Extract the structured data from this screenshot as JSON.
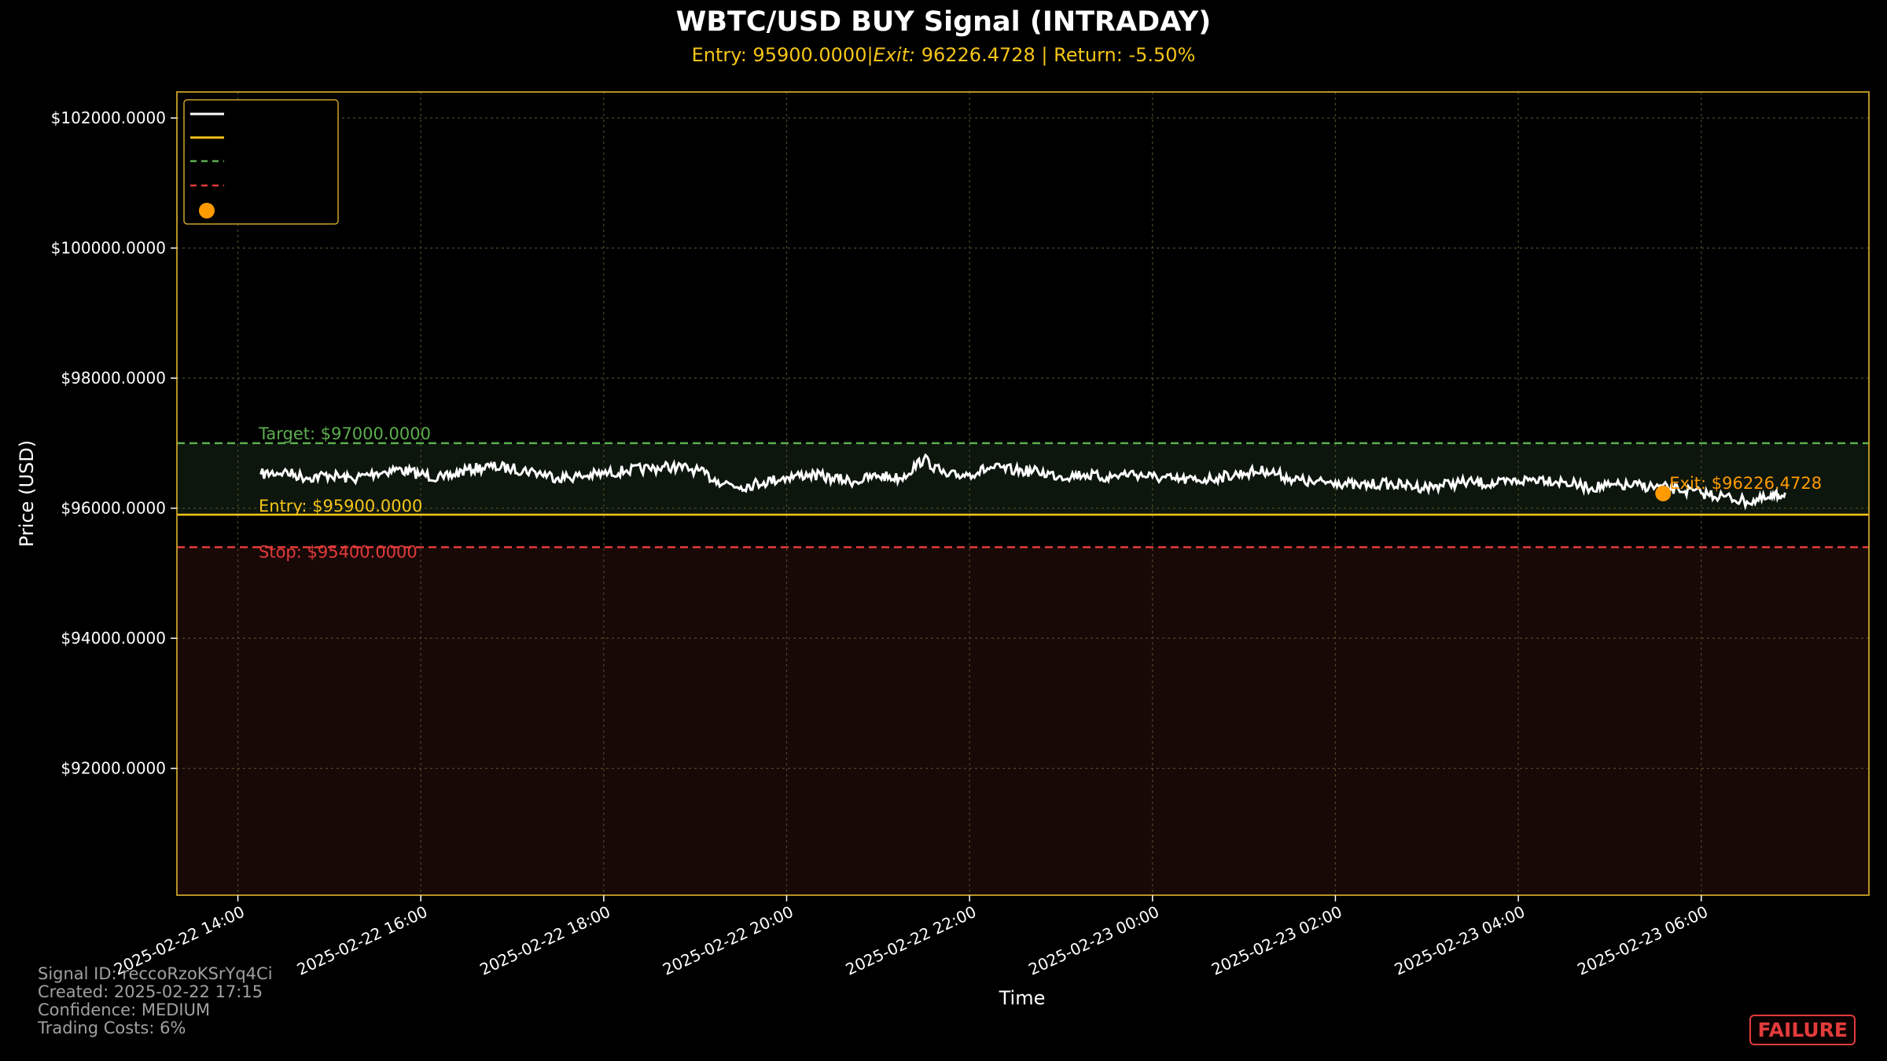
{
  "header": {
    "title": "WBTC/USD BUY Signal (INTRADAY)",
    "subtitle_entry": "Entry: 95900.0000|",
    "subtitle_exit_label": "Exit:",
    "subtitle_exit_value": " 96226.4728",
    "subtitle_return": " | Return: -5.50%"
  },
  "chart_data": {
    "type": "line",
    "title": "WBTC/USD BUY Signal (INTRADAY)",
    "xlabel": "Time",
    "ylabel": "Price (USD)",
    "ylim": [
      90050,
      102400
    ],
    "xlim": [
      "2025-02-22 13:20",
      "2025-02-23 07:50"
    ],
    "y_ticks": [
      92000,
      94000,
      96000,
      98000,
      100000,
      102000
    ],
    "y_tick_labels": [
      "$92000.0000",
      "$94000.0000",
      "$96000.0000",
      "$98000.0000",
      "$100000.0000",
      "$102000.0000"
    ],
    "x_ticks": [
      "2025-02-22 14:00",
      "2025-02-22 16:00",
      "2025-02-22 18:00",
      "2025-02-22 20:00",
      "2025-02-22 22:00",
      "2025-02-23 00:00",
      "2025-02-23 02:00",
      "2025-02-23 04:00",
      "2025-02-23 06:00"
    ],
    "grid": true,
    "legend": "top-left",
    "levels": {
      "entry": 95900,
      "target": 97000,
      "stop": 95400,
      "exit": 96226.4728
    },
    "level_labels": {
      "entry": "Entry: $95900.0000",
      "target": "Target: $97000.0000",
      "stop": "Stop: $95400.0000",
      "exit": "Exit: $96226.4728"
    },
    "exit_time": "2025-02-23 05:35",
    "series": [
      {
        "x": [
          "2025-02-22 14:15",
          "2025-02-22 14:30",
          "2025-02-22 14:45",
          "2025-02-22 15:00",
          "2025-02-22 15:15",
          "2025-02-22 15:30",
          "2025-02-22 15:45",
          "2025-02-22 16:00",
          "2025-02-22 16:15",
          "2025-02-22 16:30",
          "2025-02-22 16:45",
          "2025-02-22 17:00",
          "2025-02-22 17:15",
          "2025-02-22 17:30",
          "2025-02-22 17:45",
          "2025-02-22 18:00",
          "2025-02-22 18:15",
          "2025-02-22 18:30",
          "2025-02-22 18:45",
          "2025-02-22 19:00",
          "2025-02-22 19:15",
          "2025-02-22 19:30",
          "2025-02-22 19:45",
          "2025-02-22 20:00",
          "2025-02-22 20:15",
          "2025-02-22 20:30",
          "2025-02-22 20:45",
          "2025-02-22 21:00",
          "2025-02-22 21:15",
          "2025-02-22 21:30",
          "2025-02-22 21:45",
          "2025-02-22 22:00",
          "2025-02-22 22:15",
          "2025-02-22 22:30",
          "2025-02-22 22:45",
          "2025-02-22 23:00",
          "2025-02-22 23:15",
          "2025-02-22 23:30",
          "2025-02-22 23:45",
          "2025-02-23 00:00",
          "2025-02-23 00:15",
          "2025-02-23 00:30",
          "2025-02-23 00:45",
          "2025-02-23 01:00",
          "2025-02-23 01:15",
          "2025-02-23 01:30",
          "2025-02-23 01:45",
          "2025-02-23 02:00",
          "2025-02-23 02:15",
          "2025-02-23 02:30",
          "2025-02-23 02:45",
          "2025-02-23 03:00",
          "2025-02-23 03:15",
          "2025-02-23 03:30",
          "2025-02-23 03:45",
          "2025-02-23 04:00",
          "2025-02-23 04:15",
          "2025-02-23 04:30",
          "2025-02-23 04:45",
          "2025-02-23 05:00",
          "2025-02-23 05:15",
          "2025-02-23 05:30",
          "2025-02-23 05:45",
          "2025-02-23 06:00",
          "2025-02-23 06:15",
          "2025-02-23 06:30",
          "2025-02-23 06:45",
          "2025-02-23 06:55"
        ],
        "y": [
          96520,
          96560,
          96470,
          96510,
          96450,
          96540,
          96600,
          96520,
          96460,
          96590,
          96640,
          96610,
          96560,
          96470,
          96490,
          96530,
          96580,
          96610,
          96640,
          96590,
          96420,
          96330,
          96400,
          96480,
          96520,
          96460,
          96410,
          96500,
          96460,
          96760,
          96490,
          96530,
          96620,
          96580,
          96560,
          96490,
          96520,
          96470,
          96540,
          96480,
          96440,
          96430,
          96480,
          96540,
          96580,
          96460,
          96390,
          96410,
          96340,
          96380,
          96350,
          96320,
          96380,
          96400,
          96370,
          96420,
          96460,
          96400,
          96320,
          96340,
          96350,
          96330,
          96290,
          96230,
          96180,
          96100,
          96150,
          96240
        ]
      }
    ]
  },
  "footer": {
    "signal_id": "Signal ID: reccoRzoKSrYq4Ci",
    "created": "Created: 2025-02-22 17:15",
    "confidence": "Confidence: MEDIUM",
    "costs": "Trading Costs: 6%"
  },
  "badge": "FAILURE",
  "colors": {
    "background": "#000000",
    "axes_border": "#c9a227",
    "grid": "#4a4a2a",
    "price": "#ffffff",
    "entry": "#f5c518",
    "target": "#5cae4f",
    "stop": "#e03a3a",
    "exit": "#ff9a00",
    "target_zone": "#0c160d",
    "stop_zone": "#180806"
  }
}
